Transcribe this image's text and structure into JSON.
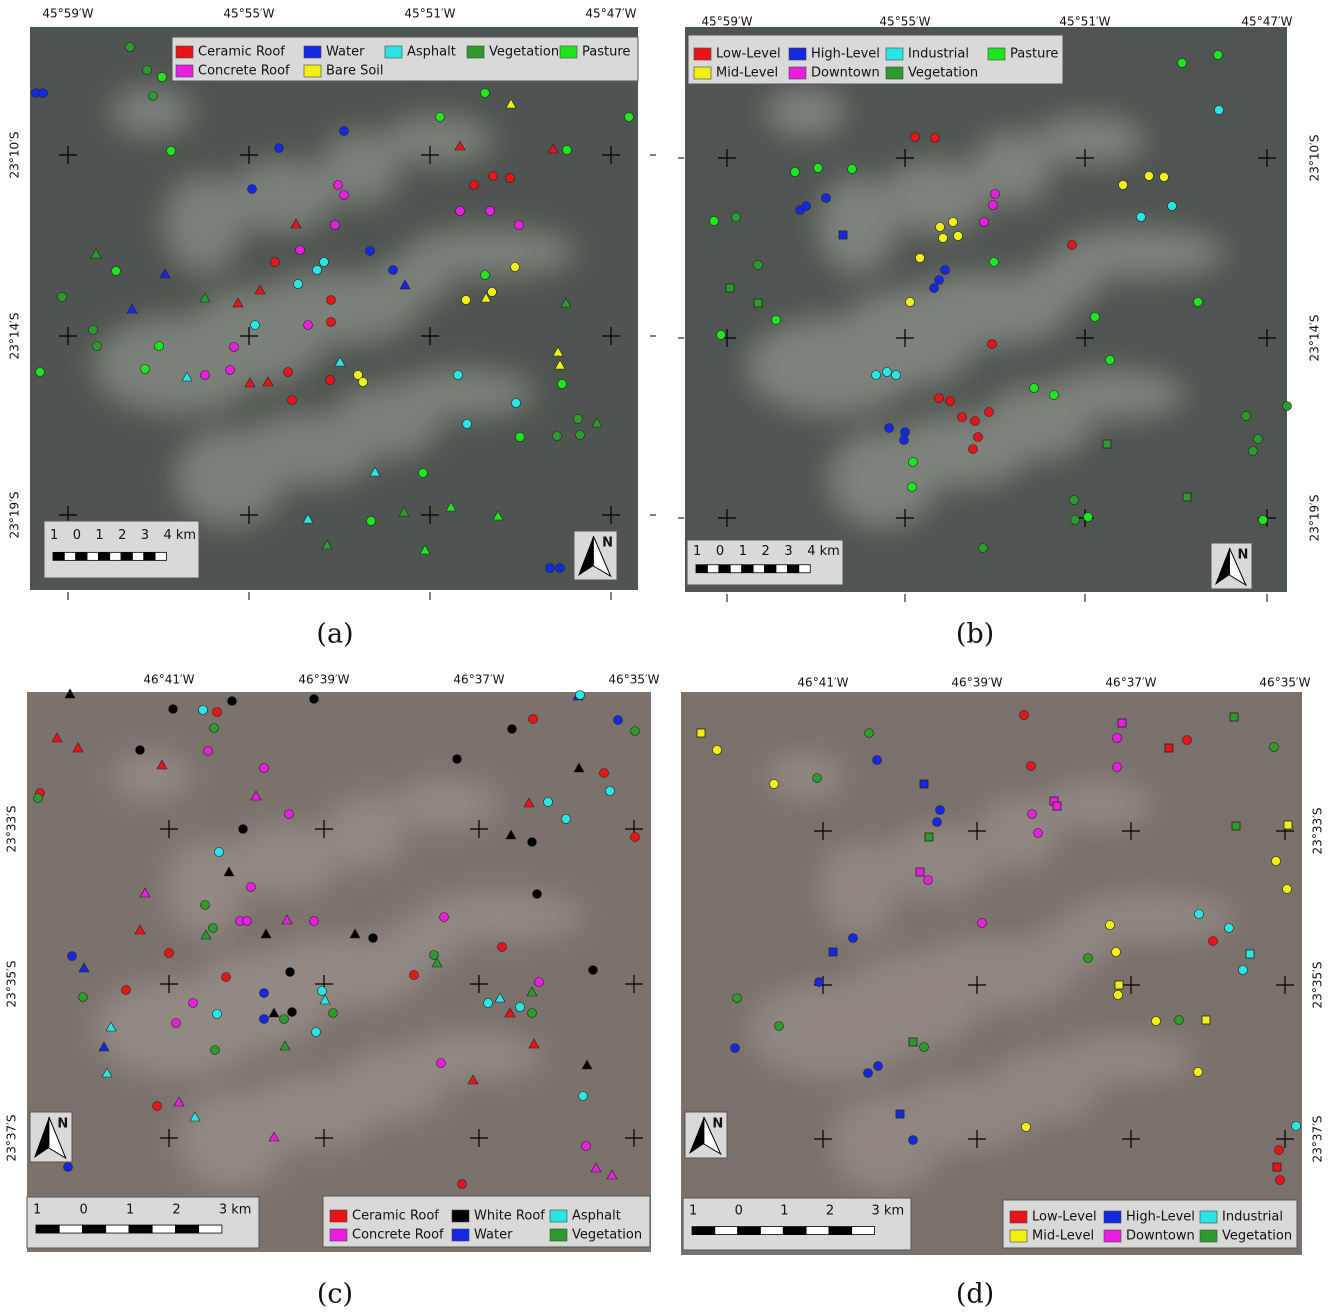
{
  "panels": [
    {
      "caption": "(a)",
      "x_labels": [
        "45°59′W",
        "45°55′W",
        "45°51′W",
        "45°47′W"
      ],
      "y_labels": [
        "23°10′S",
        "23°14′S",
        "23°19′S"
      ],
      "legend": [
        {
          "label": "Ceramic Roof",
          "color": "#e8141a"
        },
        {
          "label": "Concrete Roof",
          "color": "#e81ee0"
        },
        {
          "label": "Water",
          "color": "#1428e0"
        },
        {
          "label": "Bare Soil",
          "color": "#f0f014"
        },
        {
          "label": "Asphalt",
          "color": "#28e6e6"
        },
        {
          "label": "Vegetation",
          "color": "#2c9a2c"
        },
        {
          "label": "Pasture",
          "color": "#1ee61e"
        }
      ],
      "scale_labels": [
        "1",
        "0",
        "1",
        "2",
        "3",
        "4 km"
      ],
      "north": "N"
    },
    {
      "caption": "(b)",
      "x_labels": [
        "45°59′W",
        "45°55′W",
        "45°51′W",
        "45°47′W"
      ],
      "y_labels": [
        "23°10′S",
        "23°14′S",
        "23°19′S"
      ],
      "legend": [
        {
          "label": "Low-Level",
          "color": "#e8141a"
        },
        {
          "label": "Mid-Level",
          "color": "#f0f014"
        },
        {
          "label": "High-Level",
          "color": "#1428e0"
        },
        {
          "label": "Downtown",
          "color": "#e81ee0"
        },
        {
          "label": "Industrial",
          "color": "#28e6e6"
        },
        {
          "label": "Vegetation",
          "color": "#2c9a2c"
        },
        {
          "label": "Pasture",
          "color": "#1ee61e"
        }
      ],
      "scale_labels": [
        "1",
        "0",
        "1",
        "2",
        "3",
        "4 km"
      ],
      "north": "N"
    },
    {
      "caption": "(c)",
      "x_labels": [
        "46°41′W",
        "46°39′W",
        "46°37′W",
        "46°35′W"
      ],
      "y_labels": [
        "23°33′S",
        "23°35′S",
        "23°37′S"
      ],
      "legend": [
        {
          "label": "Ceramic Roof",
          "color": "#e8141a"
        },
        {
          "label": "Concrete Roof",
          "color": "#e81ee0"
        },
        {
          "label": "White Roof",
          "color": "#000000"
        },
        {
          "label": "Water",
          "color": "#1428e0"
        },
        {
          "label": "Asphalt",
          "color": "#28e6e6"
        },
        {
          "label": "Vegetation",
          "color": "#2c9a2c"
        }
      ],
      "scale_labels": [
        "1",
        "0",
        "1",
        "2",
        "3 km"
      ],
      "north": "N"
    },
    {
      "caption": "(d)",
      "x_labels": [
        "46°41′W",
        "46°39′W",
        "46°37′W",
        "46°35′W"
      ],
      "y_labels": [
        "23°33′S",
        "23°35′S",
        "23°37′S"
      ],
      "legend": [
        {
          "label": "Low-Level",
          "color": "#e8141a"
        },
        {
          "label": "Mid-Level",
          "color": "#f0f014"
        },
        {
          "label": "High-Level",
          "color": "#1428e0"
        },
        {
          "label": "Downtown",
          "color": "#e81ee0"
        },
        {
          "label": "Industrial",
          "color": "#28e6e6"
        },
        {
          "label": "Vegetation",
          "color": "#2c9a2c"
        }
      ],
      "scale_labels": [
        "1",
        "0",
        "1",
        "2",
        "3 km"
      ],
      "north": "N"
    }
  ]
}
